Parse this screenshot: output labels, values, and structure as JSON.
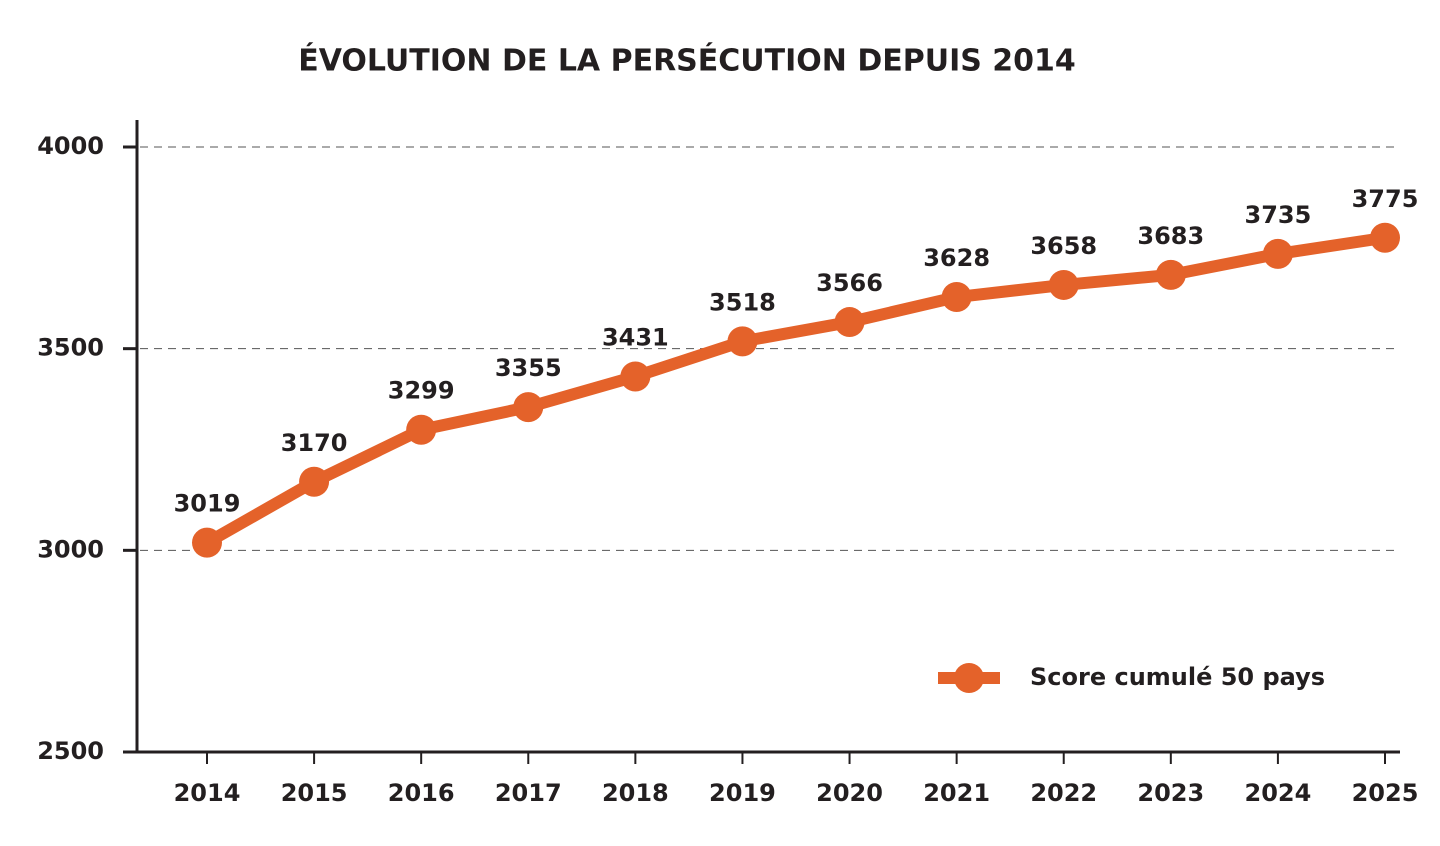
{
  "chart_data": {
    "type": "line",
    "title": "ÉVOLUTION DE LA PERSÉCUTION DEPUIS 2014",
    "categories": [
      "2014",
      "2015",
      "2016",
      "2017",
      "2018",
      "2019",
      "2020",
      "2021",
      "2022",
      "2023",
      "2024",
      "2025"
    ],
    "series": [
      {
        "name": "Score cumulé 50 pays",
        "color": "#e4622a",
        "values": [
          3019,
          3170,
          3299,
          3355,
          3431,
          3518,
          3566,
          3628,
          3658,
          3683,
          3735,
          3775
        ]
      }
    ],
    "ylim": [
      2500,
      4000
    ],
    "yticks": [
      2500,
      3000,
      3500,
      4000
    ],
    "grid": true,
    "legend": "lower right"
  }
}
